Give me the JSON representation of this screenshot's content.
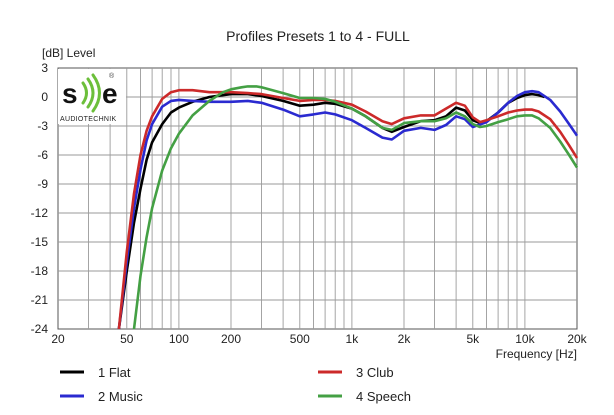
{
  "chart_data": {
    "type": "line",
    "title": "Profiles Presets 1 to 4 - FULL",
    "ylabel": "[dB]  Level",
    "xlabel": "Frequency [Hz]",
    "x_scale": "log",
    "xlim": [
      20,
      20000
    ],
    "ylim": [
      -24,
      3
    ],
    "grid": true,
    "legend_position": "bottom",
    "x_ticks": [
      {
        "value": 20,
        "label": "20"
      },
      {
        "value": 50,
        "label": "50"
      },
      {
        "value": 100,
        "label": "100"
      },
      {
        "value": 200,
        "label": "200"
      },
      {
        "value": 500,
        "label": "500"
      },
      {
        "value": 1000,
        "label": "1k"
      },
      {
        "value": 2000,
        "label": "2k"
      },
      {
        "value": 5000,
        "label": "5k"
      },
      {
        "value": 10000,
        "label": "10k"
      },
      {
        "value": 20000,
        "label": "20k"
      }
    ],
    "y_ticks": [
      {
        "value": 3,
        "label": "3"
      },
      {
        "value": 0,
        "label": "0"
      },
      {
        "value": -3,
        "label": "-3"
      },
      {
        "value": -6,
        "label": "-6"
      },
      {
        "value": -9,
        "label": "-9"
      },
      {
        "value": -12,
        "label": "-12"
      },
      {
        "value": -15,
        "label": "-15"
      },
      {
        "value": -18,
        "label": "-18"
      },
      {
        "value": -21,
        "label": "-21"
      },
      {
        "value": -24,
        "label": "-24"
      }
    ],
    "series": [
      {
        "name": "1 Flat",
        "color": "#000000",
        "points": [
          [
            45,
            -24
          ],
          [
            50,
            -18
          ],
          [
            55,
            -13
          ],
          [
            60,
            -9.5
          ],
          [
            65,
            -6.5
          ],
          [
            70,
            -4.7
          ],
          [
            80,
            -2.8
          ],
          [
            90,
            -1.6
          ],
          [
            100,
            -1.1
          ],
          [
            120,
            -0.5
          ],
          [
            150,
            0
          ],
          [
            200,
            0.3
          ],
          [
            250,
            0.3
          ],
          [
            300,
            0.1
          ],
          [
            400,
            -0.4
          ],
          [
            500,
            -0.9
          ],
          [
            600,
            -0.8
          ],
          [
            700,
            -0.6
          ],
          [
            800,
            -0.7
          ],
          [
            1000,
            -1.2
          ],
          [
            1200,
            -2
          ],
          [
            1500,
            -3.2
          ],
          [
            1700,
            -3.6
          ],
          [
            2000,
            -3.1
          ],
          [
            2500,
            -2.5
          ],
          [
            3000,
            -2.4
          ],
          [
            3500,
            -2
          ],
          [
            4000,
            -1.1
          ],
          [
            4500,
            -1.4
          ],
          [
            5000,
            -2.4
          ],
          [
            5500,
            -2.7
          ],
          [
            6000,
            -2.5
          ],
          [
            7000,
            -1.6
          ],
          [
            8000,
            -0.6
          ],
          [
            9000,
            -0.1
          ],
          [
            10000,
            0.2
          ],
          [
            11000,
            0.3
          ],
          [
            12000,
            0.2
          ],
          [
            13000,
            0
          ]
        ]
      },
      {
        "name": "2 Music",
        "color": "#2a2ad0",
        "points": [
          [
            45,
            -24
          ],
          [
            50,
            -17
          ],
          [
            55,
            -11.5
          ],
          [
            60,
            -7.5
          ],
          [
            65,
            -4.5
          ],
          [
            70,
            -2.8
          ],
          [
            80,
            -1
          ],
          [
            90,
            -0.4
          ],
          [
            100,
            -0.3
          ],
          [
            120,
            -0.4
          ],
          [
            150,
            -0.5
          ],
          [
            200,
            -0.5
          ],
          [
            250,
            -0.4
          ],
          [
            300,
            -0.6
          ],
          [
            400,
            -1.3
          ],
          [
            500,
            -2
          ],
          [
            600,
            -1.8
          ],
          [
            700,
            -1.6
          ],
          [
            800,
            -1.8
          ],
          [
            1000,
            -2.4
          ],
          [
            1200,
            -3.2
          ],
          [
            1500,
            -4.2
          ],
          [
            1700,
            -4.4
          ],
          [
            2000,
            -3.5
          ],
          [
            2500,
            -3.2
          ],
          [
            3000,
            -3.4
          ],
          [
            3500,
            -2.9
          ],
          [
            4000,
            -2
          ],
          [
            4500,
            -2.3
          ],
          [
            5000,
            -3.1
          ],
          [
            6000,
            -2.6
          ],
          [
            7000,
            -1.6
          ],
          [
            8000,
            -0.6
          ],
          [
            9000,
            0.1
          ],
          [
            10000,
            0.5
          ],
          [
            11000,
            0.6
          ],
          [
            12000,
            0.5
          ],
          [
            14000,
            -0.3
          ],
          [
            16000,
            -1.5
          ],
          [
            18000,
            -2.8
          ],
          [
            20000,
            -4
          ]
        ]
      },
      {
        "name": "3 Club",
        "color": "#cc2a2a",
        "points": [
          [
            45,
            -24
          ],
          [
            50,
            -16
          ],
          [
            55,
            -10
          ],
          [
            60,
            -6
          ],
          [
            65,
            -3.5
          ],
          [
            70,
            -2
          ],
          [
            80,
            -0.2
          ],
          [
            90,
            0.5
          ],
          [
            100,
            0.7
          ],
          [
            120,
            0.7
          ],
          [
            150,
            0.5
          ],
          [
            200,
            0.5
          ],
          [
            250,
            0.4
          ],
          [
            300,
            0.3
          ],
          [
            400,
            -0.1
          ],
          [
            500,
            -0.4
          ],
          [
            600,
            -0.3
          ],
          [
            700,
            -0.3
          ],
          [
            800,
            -0.4
          ],
          [
            1000,
            -0.8
          ],
          [
            1200,
            -1.5
          ],
          [
            1500,
            -2.5
          ],
          [
            1700,
            -2.8
          ],
          [
            2000,
            -2.2
          ],
          [
            2500,
            -1.9
          ],
          [
            3000,
            -1.9
          ],
          [
            3500,
            -1.2
          ],
          [
            4000,
            -0.6
          ],
          [
            4500,
            -0.9
          ],
          [
            5000,
            -2.1
          ],
          [
            5500,
            -2.6
          ],
          [
            6000,
            -2.4
          ],
          [
            7000,
            -2
          ],
          [
            8000,
            -1.6
          ],
          [
            9000,
            -1.4
          ],
          [
            10000,
            -1.3
          ],
          [
            11000,
            -1.3
          ],
          [
            12000,
            -1.5
          ],
          [
            14000,
            -2.3
          ],
          [
            16000,
            -3.6
          ],
          [
            18000,
            -5
          ],
          [
            20000,
            -6.3
          ]
        ]
      },
      {
        "name": "4 Speech",
        "color": "#44a044",
        "points": [
          [
            55,
            -24
          ],
          [
            60,
            -18.5
          ],
          [
            65,
            -14.5
          ],
          [
            70,
            -11.5
          ],
          [
            80,
            -7.6
          ],
          [
            90,
            -5.3
          ],
          [
            100,
            -3.8
          ],
          [
            120,
            -1.9
          ],
          [
            150,
            -0.4
          ],
          [
            180,
            0.5
          ],
          [
            200,
            0.8
          ],
          [
            230,
            1
          ],
          [
            250,
            1.1
          ],
          [
            280,
            1.1
          ],
          [
            300,
            1
          ],
          [
            400,
            0.4
          ],
          [
            500,
            -0.1
          ],
          [
            600,
            -0.1
          ],
          [
            700,
            -0.2
          ],
          [
            800,
            -0.5
          ],
          [
            1000,
            -1.2
          ],
          [
            1200,
            -2
          ],
          [
            1500,
            -3.2
          ],
          [
            1700,
            -3.4
          ],
          [
            2000,
            -2.7
          ],
          [
            2500,
            -2.5
          ],
          [
            3000,
            -2.5
          ],
          [
            3500,
            -2.2
          ],
          [
            4000,
            -1.6
          ],
          [
            4500,
            -2
          ],
          [
            5000,
            -2.8
          ],
          [
            5500,
            -3.1
          ],
          [
            6000,
            -3
          ],
          [
            7000,
            -2.6
          ],
          [
            8000,
            -2.3
          ],
          [
            9000,
            -2
          ],
          [
            10000,
            -1.9
          ],
          [
            11000,
            -1.9
          ],
          [
            12000,
            -2.2
          ],
          [
            14000,
            -3.2
          ],
          [
            16000,
            -4.6
          ],
          [
            18000,
            -6
          ],
          [
            20000,
            -7.3
          ]
        ]
      }
    ]
  },
  "logo": {
    "letters_left": "s",
    "letters_right": "e",
    "sub": "AUDIOTECHNIK",
    "registered": "®",
    "colors": {
      "accent": "#6cbf3a",
      "text": "#111111"
    }
  }
}
